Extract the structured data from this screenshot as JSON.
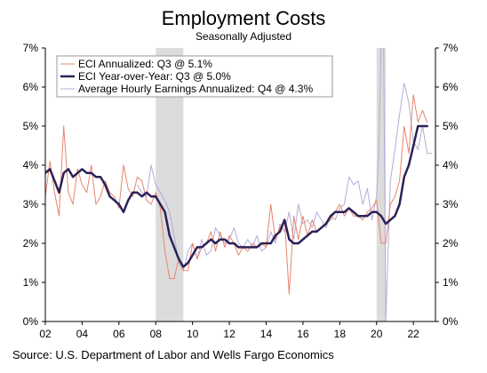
{
  "header": {
    "title": "Employment Costs",
    "subtitle": "Seasonally Adjusted"
  },
  "footer": {
    "source": "Source: U.S. Department of Labor and Wells Fargo Economics"
  },
  "chart_data": {
    "type": "line",
    "title": "Employment Costs",
    "subtitle": "Seasonally Adjusted",
    "xlabel": "",
    "ylabel": "",
    "xlim": [
      2002.0,
      2023.2
    ],
    "ylim": [
      0,
      7
    ],
    "y_ticks": [
      "0%",
      "1%",
      "2%",
      "3%",
      "4%",
      "5%",
      "6%",
      "7%"
    ],
    "x_ticks": [
      {
        "value": 2002,
        "label": "02"
      },
      {
        "value": 2004,
        "label": "04"
      },
      {
        "value": 2006,
        "label": "06"
      },
      {
        "value": 2008,
        "label": "08"
      },
      {
        "value": 2010,
        "label": "10"
      },
      {
        "value": 2012,
        "label": "12"
      },
      {
        "value": 2014,
        "label": "14"
      },
      {
        "value": 2016,
        "label": "16"
      },
      {
        "value": 2018,
        "label": "18"
      },
      {
        "value": 2020,
        "label": "20"
      },
      {
        "value": 2022,
        "label": "22"
      }
    ],
    "grid": false,
    "right_axis": true,
    "legend_position": "top-left",
    "recessions": [
      [
        2008.0,
        2009.5
      ],
      [
        2020.0,
        2020.5
      ]
    ],
    "series": [
      {
        "name": "ECI Annualized: Q3 @ 5.1%",
        "color": "#e8846c",
        "width": 1,
        "x": [
          2002.0,
          2002.25,
          2002.5,
          2002.75,
          2003.0,
          2003.25,
          2003.5,
          2003.75,
          2004.0,
          2004.25,
          2004.5,
          2004.75,
          2005.0,
          2005.25,
          2005.5,
          2005.75,
          2006.0,
          2006.25,
          2006.5,
          2006.75,
          2007.0,
          2007.25,
          2007.5,
          2007.75,
          2008.0,
          2008.25,
          2008.5,
          2008.75,
          2009.0,
          2009.25,
          2009.5,
          2009.75,
          2010.0,
          2010.25,
          2010.5,
          2010.75,
          2011.0,
          2011.25,
          2011.5,
          2011.75,
          2012.0,
          2012.25,
          2012.5,
          2012.75,
          2013.0,
          2013.25,
          2013.5,
          2013.75,
          2014.0,
          2014.25,
          2014.5,
          2014.75,
          2015.0,
          2015.25,
          2015.5,
          2015.75,
          2016.0,
          2016.25,
          2016.5,
          2016.75,
          2017.0,
          2017.25,
          2017.5,
          2017.75,
          2018.0,
          2018.25,
          2018.5,
          2018.75,
          2019.0,
          2019.25,
          2019.5,
          2019.75,
          2020.0,
          2020.25,
          2020.5,
          2020.75,
          2021.0,
          2021.25,
          2021.5,
          2021.75,
          2022.0,
          2022.25,
          2022.5,
          2022.75
        ],
        "y": [
          3.2,
          4.1,
          3.3,
          2.7,
          5.0,
          3.3,
          3.0,
          3.9,
          3.5,
          3.3,
          4.0,
          3.0,
          3.2,
          3.6,
          3.3,
          3.2,
          2.9,
          4.0,
          3.4,
          3.2,
          3.7,
          3.6,
          3.1,
          3.0,
          3.3,
          2.9,
          1.8,
          1.1,
          1.1,
          1.6,
          1.3,
          1.3,
          2.0,
          1.6,
          1.9,
          2.0,
          2.3,
          1.8,
          2.3,
          1.9,
          2.2,
          2.0,
          1.7,
          1.9,
          1.8,
          2.0,
          1.9,
          2.0,
          1.9,
          3.0,
          2.1,
          2.4,
          2.6,
          0.7,
          2.7,
          2.1,
          2.7,
          2.2,
          2.6,
          2.3,
          2.4,
          2.5,
          2.6,
          2.8,
          3.0,
          2.7,
          2.9,
          2.7,
          2.7,
          2.6,
          2.8,
          2.9,
          3.1,
          2.0,
          2.0,
          3.0,
          3.2,
          3.6,
          5.0,
          4.3,
          5.8,
          5.1,
          5.4,
          5.1
        ]
      },
      {
        "name": "ECI Year-over-Year: Q3 @ 5.0%",
        "color": "#2c2157",
        "width": 2.5,
        "x": [
          2002.0,
          2002.25,
          2002.5,
          2002.75,
          2003.0,
          2003.25,
          2003.5,
          2003.75,
          2004.0,
          2004.25,
          2004.5,
          2004.75,
          2005.0,
          2005.25,
          2005.5,
          2005.75,
          2006.0,
          2006.25,
          2006.5,
          2006.75,
          2007.0,
          2007.25,
          2007.5,
          2007.75,
          2008.0,
          2008.25,
          2008.5,
          2008.75,
          2009.0,
          2009.25,
          2009.5,
          2009.75,
          2010.0,
          2010.25,
          2010.5,
          2010.75,
          2011.0,
          2011.25,
          2011.5,
          2011.75,
          2012.0,
          2012.25,
          2012.5,
          2012.75,
          2013.0,
          2013.25,
          2013.5,
          2013.75,
          2014.0,
          2014.25,
          2014.5,
          2014.75,
          2015.0,
          2015.25,
          2015.5,
          2015.75,
          2016.0,
          2016.25,
          2016.5,
          2016.75,
          2017.0,
          2017.25,
          2017.5,
          2017.75,
          2018.0,
          2018.25,
          2018.5,
          2018.75,
          2019.0,
          2019.25,
          2019.5,
          2019.75,
          2020.0,
          2020.25,
          2020.5,
          2020.75,
          2021.0,
          2021.25,
          2021.5,
          2021.75,
          2022.0,
          2022.25,
          2022.5,
          2022.75
        ],
        "y": [
          3.8,
          3.9,
          3.6,
          3.3,
          3.8,
          3.9,
          3.7,
          3.8,
          3.9,
          3.8,
          3.8,
          3.7,
          3.7,
          3.5,
          3.2,
          3.1,
          3.0,
          2.8,
          3.1,
          3.3,
          3.3,
          3.2,
          3.3,
          3.2,
          3.2,
          3.0,
          2.8,
          2.2,
          1.9,
          1.6,
          1.4,
          1.5,
          1.7,
          1.9,
          1.9,
          2.0,
          2.1,
          2.0,
          2.1,
          2.1,
          2.0,
          2.0,
          1.9,
          1.9,
          1.9,
          1.9,
          1.9,
          2.0,
          2.0,
          2.0,
          2.2,
          2.3,
          2.6,
          2.1,
          2.0,
          2.0,
          2.1,
          2.2,
          2.3,
          2.3,
          2.4,
          2.5,
          2.7,
          2.8,
          2.8,
          2.8,
          2.9,
          2.8,
          2.7,
          2.7,
          2.7,
          2.8,
          2.8,
          2.7,
          2.5,
          2.6,
          2.7,
          3.0,
          3.7,
          4.0,
          4.5,
          5.0,
          5.0,
          5.0
        ]
      },
      {
        "name": "Average Hourly Earnings Annualized: Q4 @ 4.3%",
        "color": "#b3acd8",
        "width": 1,
        "x": [
          2007.0,
          2007.25,
          2007.5,
          2007.75,
          2008.0,
          2008.25,
          2008.5,
          2008.75,
          2009.0,
          2009.25,
          2009.5,
          2009.75,
          2010.0,
          2010.25,
          2010.5,
          2010.75,
          2011.0,
          2011.25,
          2011.5,
          2011.75,
          2012.0,
          2012.25,
          2012.5,
          2012.75,
          2013.0,
          2013.25,
          2013.5,
          2013.75,
          2014.0,
          2014.25,
          2014.5,
          2014.75,
          2015.0,
          2015.25,
          2015.5,
          2015.75,
          2016.0,
          2016.25,
          2016.5,
          2016.75,
          2017.0,
          2017.25,
          2017.5,
          2017.75,
          2018.0,
          2018.25,
          2018.5,
          2018.75,
          2019.0,
          2019.25,
          2019.5,
          2019.75,
          2020.0,
          2020.12,
          2020.25,
          2020.38,
          2020.5,
          2020.75,
          2021.0,
          2021.25,
          2021.5,
          2021.75,
          2022.0,
          2022.25,
          2022.5,
          2022.75,
          2023.0
        ],
        "y": [
          3.5,
          3.3,
          3.2,
          4.0,
          3.5,
          3.3,
          3.1,
          2.8,
          2.2,
          1.5,
          1.3,
          1.8,
          2.0,
          1.6,
          2.1,
          1.7,
          1.8,
          2.4,
          2.2,
          2.0,
          2.1,
          2.4,
          2.0,
          1.9,
          2.1,
          1.9,
          2.2,
          1.8,
          1.9,
          2.3,
          2.0,
          2.5,
          2.3,
          2.8,
          2.1,
          3.0,
          2.5,
          2.6,
          2.4,
          2.8,
          2.6,
          2.4,
          2.7,
          2.6,
          2.9,
          3.0,
          3.7,
          3.5,
          3.6,
          3.0,
          3.4,
          2.6,
          3.2,
          4.3,
          7.2,
          7.3,
          0.0,
          3.6,
          4.4,
          5.3,
          6.1,
          5.6,
          4.6,
          4.4,
          5.0,
          4.3,
          4.3
        ]
      }
    ]
  }
}
